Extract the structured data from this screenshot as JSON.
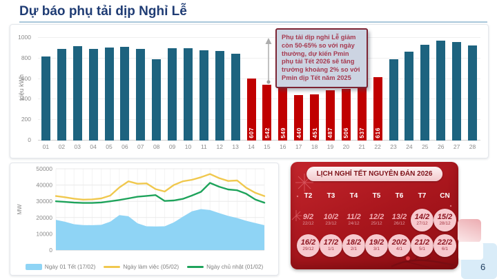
{
  "slide": {
    "title": "Dự báo phụ tải dịp Nghỉ Lễ",
    "page_number": "6"
  },
  "callout": {
    "text": "Phụ tải dịp nghỉ Lễ giảm còn 50-65% so với ngày thường, dự kiến Pmin phụ tải Tết 2026 sẽ tăng trưởng khoảng 2% so với Pmin dịp Tết năm 2025"
  },
  "chart_data": [
    {
      "type": "bar",
      "ylabel": "triệu kWh",
      "ylim": [
        0,
        1000
      ],
      "yticks": [
        0,
        200,
        400,
        600,
        800,
        1000
      ],
      "categories": [
        "01",
        "02",
        "03",
        "04",
        "05",
        "06",
        "07",
        "08",
        "09",
        "10",
        "11",
        "12",
        "13",
        "14",
        "15",
        "16",
        "17",
        "18",
        "19",
        "20",
        "21",
        "22",
        "23",
        "24",
        "25",
        "26",
        "27",
        "28"
      ],
      "values": [
        822,
        895,
        918,
        893,
        908,
        915,
        893,
        792,
        897,
        901,
        881,
        870,
        848,
        607,
        542,
        549,
        440,
        451,
        487,
        506,
        537,
        616,
        795,
        865,
        935,
        970,
        960,
        925
      ],
      "holiday_days": [
        "14",
        "15",
        "16",
        "17",
        "18",
        "19",
        "20",
        "21",
        "22"
      ],
      "bar_color": "#1d637f",
      "holiday_color": "#c00000",
      "value_labels_on_holidays": [
        607,
        542,
        549,
        440,
        451,
        487,
        506,
        537,
        616
      ],
      "grid": true
    },
    {
      "type": "area+line",
      "ylabel": "MW",
      "ylim": [
        0,
        50000
      ],
      "yticks": [
        0,
        10000,
        20000,
        30000,
        40000,
        50000
      ],
      "x_hours": [
        1,
        2,
        3,
        4,
        5,
        6,
        7,
        8,
        9,
        10,
        11,
        12,
        13,
        14,
        15,
        16,
        17,
        18,
        19,
        20,
        21,
        22,
        23,
        24
      ],
      "series": [
        {
          "name": "Ngày 01 Tết (17/02)",
          "style": "area",
          "color": "#8fd4f5",
          "values": [
            18600,
            17400,
            15900,
            15400,
            15300,
            15500,
            17500,
            21500,
            20800,
            16500,
            14600,
            14500,
            14600,
            17000,
            20500,
            23800,
            25200,
            24600,
            22800,
            21000,
            19700,
            18000,
            16600,
            15300
          ]
        },
        {
          "name": "Ngày làm việc (05/02)",
          "style": "line",
          "color": "#f0c84e",
          "values": [
            33200,
            32500,
            31600,
            31000,
            31200,
            31800,
            33500,
            38500,
            42300,
            40800,
            41000,
            37500,
            36000,
            40000,
            42300,
            43200,
            44800,
            46800,
            44300,
            42500,
            42800,
            38300,
            35200,
            33200
          ]
        },
        {
          "name": "Ngày chủ nhật (01/02)",
          "style": "line",
          "color": "#1ea35b",
          "values": [
            30000,
            29600,
            29200,
            29000,
            29000,
            29300,
            30000,
            30800,
            31800,
            32800,
            33300,
            33800,
            30200,
            30500,
            31500,
            33500,
            35800,
            41300,
            39000,
            37300,
            36800,
            34600,
            31100,
            29100
          ]
        }
      ],
      "legend_position": "bottom",
      "grid": true
    }
  ],
  "calendar": {
    "title": "LỊCH NGHỈ TẾT NGUYÊN ĐÁN 2026",
    "day_headers": [
      "T2",
      "T3",
      "T4",
      "T5",
      "T6",
      "T7",
      "CN"
    ],
    "weeks": [
      [
        {
          "solar": "9/2",
          "lunar": "22/12",
          "holiday": false
        },
        {
          "solar": "10/2",
          "lunar": "23/12",
          "holiday": false
        },
        {
          "solar": "11/2",
          "lunar": "24/12",
          "holiday": false
        },
        {
          "solar": "12/2",
          "lunar": "25/12",
          "holiday": false
        },
        {
          "solar": "13/2",
          "lunar": "26/12",
          "holiday": false
        },
        {
          "solar": "14/2",
          "lunar": "27/12",
          "holiday": true
        },
        {
          "solar": "15/2",
          "lunar": "28/12",
          "holiday": true
        }
      ],
      [
        {
          "solar": "16/2",
          "lunar": "29/12",
          "holiday": true
        },
        {
          "solar": "17/2",
          "lunar": "1/1",
          "holiday": true
        },
        {
          "solar": "18/2",
          "lunar": "2/1",
          "holiday": true
        },
        {
          "solar": "19/2",
          "lunar": "3/1",
          "holiday": true
        },
        {
          "solar": "20/2",
          "lunar": "4/1",
          "holiday": true
        },
        {
          "solar": "21/2",
          "lunar": "5/1",
          "holiday": true
        },
        {
          "solar": "22/2",
          "lunar": "6/1",
          "holiday": true
        }
      ]
    ]
  },
  "colors": {
    "title_navy": "#1f3c74",
    "bar_teal": "#1d637f",
    "bar_red": "#c00000",
    "callout_bg": "#ccd4e2",
    "callout_text": "#a63a50",
    "calendar_red": "#a9161d",
    "corner_blue": "#d9ecf8",
    "corner_pink": "#ecacb1"
  }
}
